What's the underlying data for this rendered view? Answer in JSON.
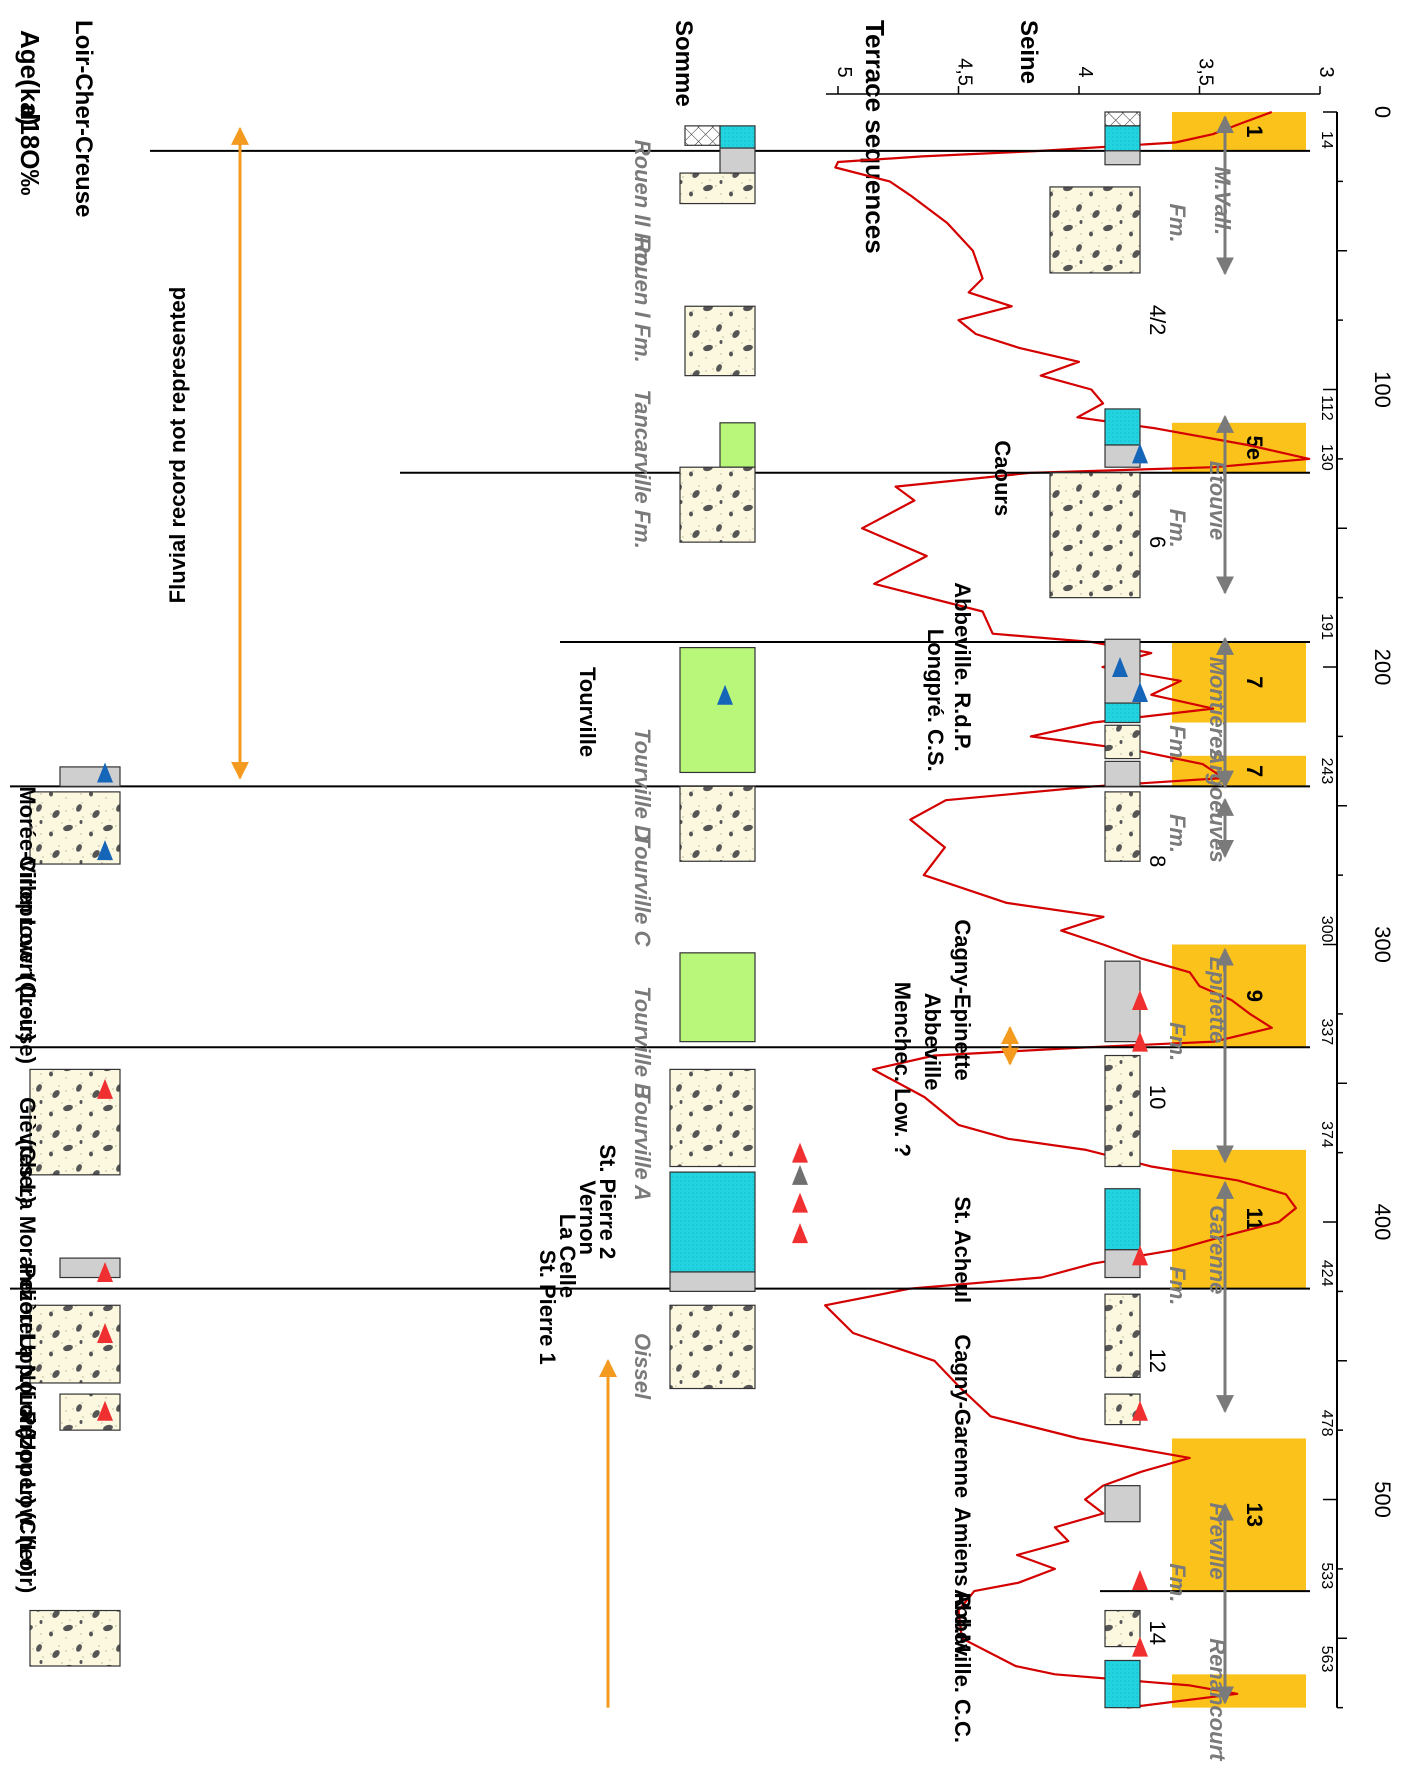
{
  "header": {
    "age_label": "Age(ka)",
    "d18o_label": "d18O‰",
    "sections": [
      "Somme",
      "Terrace   sequences",
      "Seine",
      "Loir-Cher-Creuse"
    ]
  },
  "chart_data": {
    "type": "line",
    "title": "",
    "xlabel": "Age(ka)",
    "ylabel": "d18O‰",
    "x_ticks": [
      0,
      100,
      200,
      300,
      400,
      500
    ],
    "y_ticks": [
      "3",
      "3,5",
      "4",
      "4,5",
      "5"
    ],
    "ylim": [
      3,
      5.1
    ],
    "xlim": [
      0,
      575
    ],
    "series": [
      {
        "points": [
          [
            0,
            3.2
          ],
          [
            4,
            3.3
          ],
          [
            8,
            3.4
          ],
          [
            11,
            3.6
          ],
          [
            14,
            4.1
          ],
          [
            16,
            4.6
          ],
          [
            18,
            5.0
          ],
          [
            20,
            5.0
          ],
          [
            25,
            4.8
          ],
          [
            30,
            4.7
          ],
          [
            40,
            4.6
          ],
          [
            50,
            4.5
          ],
          [
            60,
            4.4
          ],
          [
            65,
            4.5
          ],
          [
            70,
            4.3
          ],
          [
            75,
            4.5
          ],
          [
            80,
            4.4
          ],
          [
            85,
            4.2
          ],
          [
            90,
            4.0
          ],
          [
            95,
            4.1
          ],
          [
            100,
            3.9
          ],
          [
            105,
            3.9
          ],
          [
            110,
            4.0
          ],
          [
            114,
            3.7
          ],
          [
            120,
            3.3
          ],
          [
            125,
            3.1
          ],
          [
            128,
            3.5
          ],
          [
            130,
            4.2
          ],
          [
            135,
            4.8
          ],
          [
            140,
            4.7
          ],
          [
            150,
            4.9
          ],
          [
            160,
            4.6
          ],
          [
            170,
            4.8
          ],
          [
            180,
            4.4
          ],
          [
            188,
            4.3
          ],
          [
            191,
            3.9
          ],
          [
            195,
            3.7
          ],
          [
            200,
            3.9
          ],
          [
            205,
            3.6
          ],
          [
            210,
            3.7
          ],
          [
            215,
            3.5
          ],
          [
            220,
            4.0
          ],
          [
            225,
            4.2
          ],
          [
            230,
            3.8
          ],
          [
            235,
            3.5
          ],
          [
            240,
            3.4
          ],
          [
            243,
            3.9
          ],
          [
            248,
            4.5
          ],
          [
            255,
            4.7
          ],
          [
            265,
            4.5
          ],
          [
            275,
            4.6
          ],
          [
            285,
            4.3
          ],
          [
            290,
            3.9
          ],
          [
            295,
            4.1
          ],
          [
            300,
            3.9
          ],
          [
            305,
            3.8
          ],
          [
            310,
            3.6
          ],
          [
            315,
            3.5
          ],
          [
            320,
            3.4
          ],
          [
            325,
            3.3
          ],
          [
            330,
            3.2
          ],
          [
            335,
            3.4
          ],
          [
            337,
            3.9
          ],
          [
            340,
            4.6
          ],
          [
            345,
            4.8
          ],
          [
            355,
            4.6
          ],
          [
            365,
            4.5
          ],
          [
            370,
            4.3
          ],
          [
            374,
            4.0
          ],
          [
            380,
            3.7
          ],
          [
            385,
            3.4
          ],
          [
            390,
            3.2
          ],
          [
            395,
            3.1
          ],
          [
            400,
            3.2
          ],
          [
            405,
            3.4
          ],
          [
            410,
            3.6
          ],
          [
            415,
            3.9
          ],
          [
            420,
            4.1
          ],
          [
            424,
            4.7
          ],
          [
            430,
            5.0
          ],
          [
            440,
            4.9
          ],
          [
            450,
            4.6
          ],
          [
            460,
            4.5
          ],
          [
            470,
            4.4
          ],
          [
            478,
            4.0
          ],
          [
            485,
            3.6
          ],
          [
            490,
            3.8
          ],
          [
            495,
            3.9
          ],
          [
            500,
            4.0
          ],
          [
            505,
            3.9
          ],
          [
            510,
            4.1
          ],
          [
            515,
            4.0
          ],
          [
            520,
            4.2
          ],
          [
            525,
            4.1
          ],
          [
            530,
            4.2
          ],
          [
            533,
            4.4
          ],
          [
            540,
            4.5
          ],
          [
            550,
            4.5
          ],
          [
            560,
            4.3
          ],
          [
            563,
            4.1
          ],
          [
            567,
            3.6
          ],
          [
            570,
            3.4
          ],
          [
            575,
            3.8
          ]
        ]
      }
    ],
    "warm_stages": [
      {
        "from": 0,
        "to": 14,
        "label": "1"
      },
      {
        "from": 112,
        "to": 130,
        "label": "5e"
      },
      {
        "from": 191,
        "to": 220,
        "label": "7"
      },
      {
        "from": 232,
        "to": 243,
        "label": "7"
      },
      {
        "from": 300,
        "to": 337,
        "label": "9"
      },
      {
        "from": 374,
        "to": 424,
        "label": "11"
      },
      {
        "from": 478,
        "to": 533,
        "label": "13"
      },
      {
        "from": 563,
        "to": 580,
        "label": ""
      }
    ],
    "cold_stages": [
      {
        "age": 75,
        "label": "4/2"
      },
      {
        "age": 155,
        "label": "6"
      },
      {
        "age": 270,
        "label": "8"
      },
      {
        "age": 355,
        "label": "10"
      },
      {
        "age": 450,
        "label": "12"
      },
      {
        "age": 548,
        "label": "14"
      }
    ],
    "boundary_labels": [
      "14",
      "112",
      "130",
      "191",
      "243",
      "300",
      "337",
      "374",
      "424",
      "478",
      "533",
      "563"
    ],
    "boundaries_ka": [
      14,
      112,
      130,
      191,
      243,
      300,
      337,
      374,
      424,
      478,
      533,
      563
    ],
    "colors": {
      "curve": "#d40000",
      "warm": "#fbc21b",
      "line": "#000000"
    }
  },
  "somme": {
    "formations": [
      "M.Vall.",
      "Fm.",
      "Etouvie",
      "Fm.",
      "Montières",
      "Fm.",
      "Argoeuves",
      "Fm.",
      "Epinette",
      "Fm.",
      "Garenne",
      "Fm.",
      "Fréville",
      "Fm.",
      "Renancourt"
    ],
    "sites": [
      "Caours",
      "Abbeville. R.d.P.",
      "Longpré. C.S.",
      "Cagny-Epinette",
      "Abbeville",
      "Menchec. Low. ?",
      "St. Acheul",
      "Cagny-Garenne",
      "Amiens R.d.M.",
      "Abbeville. C.C."
    ]
  },
  "seine": {
    "formations": [
      "Rouen II Fm.",
      "Rouen I Fm.",
      "Tancarville Fm.",
      "Tourville D",
      "Tourville C",
      "Tourville B",
      "Tourville A",
      "Oissel"
    ],
    "sites": [
      "Tourville",
      "St. Pierre 2",
      "Vernon",
      "La Celle",
      "St. Pierre 1"
    ]
  },
  "loir": {
    "note": "Fluvial record not represented",
    "sites": [
      "Morée-Villeprovert (Loir)",
      "Ciron Low. (Creuse)",
      "Gièvres La Morandière",
      "(Cher)",
      "Pezou Upp.(Loir)",
      "La Noira (Upper) (Cher)",
      "Pezou Low. (Loir)"
    ]
  },
  "colors": {
    "gravel_bg": "#fbf8df",
    "pebble": "#555555",
    "cyan": "#22d3e0",
    "grey": "#cfcfcf",
    "green": "#b8f77a",
    "orange": "#f39a1f",
    "blue_tri": "#1565b8",
    "red_tri": "#f03030",
    "grey_tri": "#707070"
  }
}
